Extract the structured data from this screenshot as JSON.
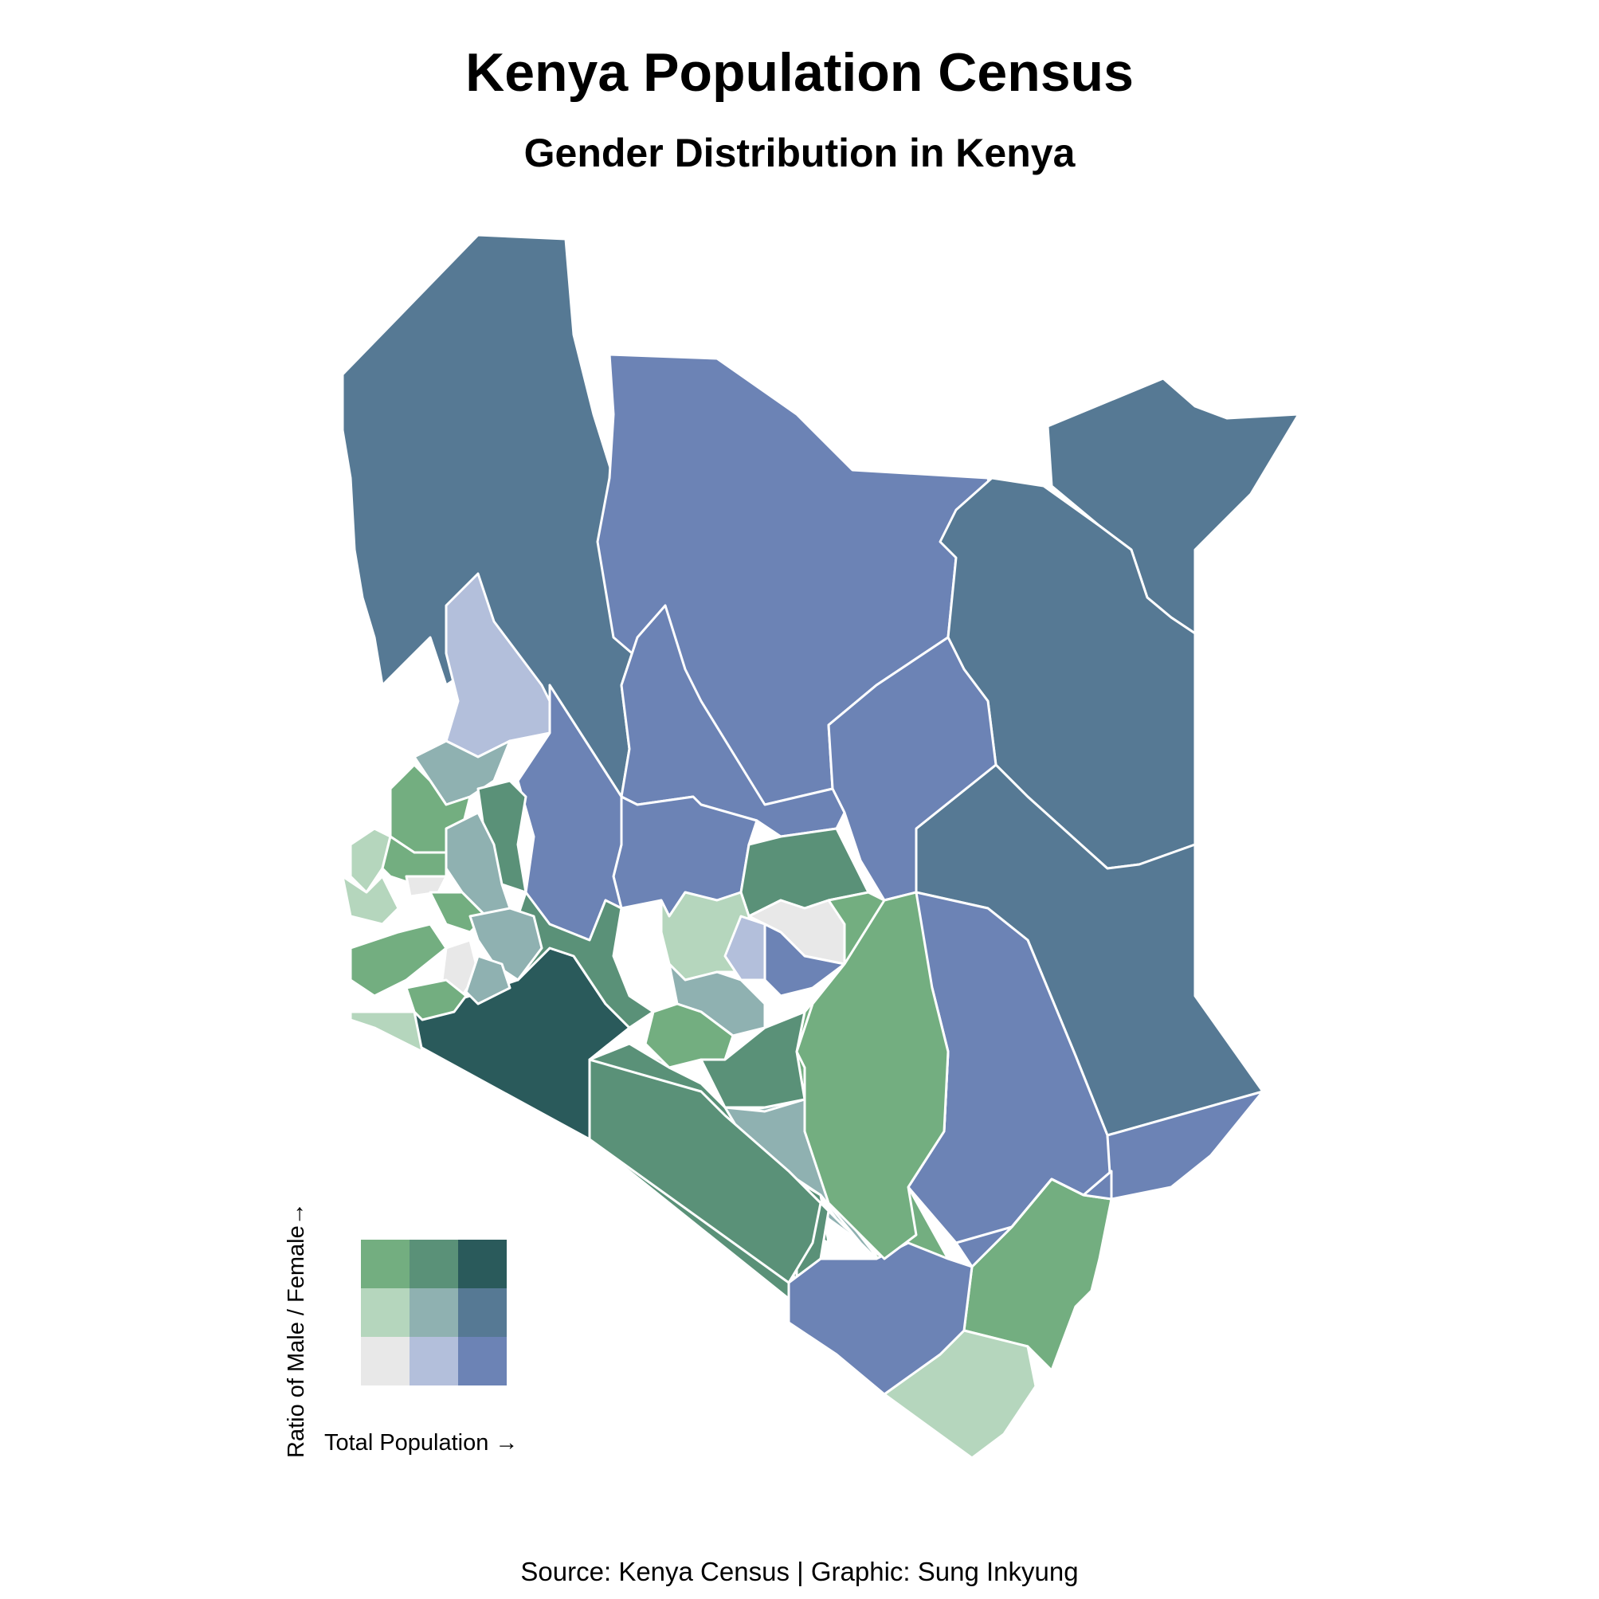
{
  "title": "Kenya Population Census",
  "subtitle": "Gender Distribution in Kenya",
  "caption": "Source: Kenya Census | Graphic: Sung Inkyung",
  "legend": {
    "x_label": "Total Population →",
    "y_label": "Ratio of Male / Female→",
    "colors": {
      "low_pop_low_ratio": "#e8e8e8",
      "mid_pop_low_ratio": "#b3bfdb",
      "high_pop_low_ratio": "#6c83b5",
      "low_pop_mid_ratio": "#b5d6bd",
      "mid_pop_mid_ratio": "#8fb1b1",
      "high_pop_mid_ratio": "#567994",
      "low_pop_high_ratio": "#73ae80",
      "mid_pop_high_ratio": "#5a9178",
      "high_pop_high_ratio": "#2a5a5b"
    }
  }
}
